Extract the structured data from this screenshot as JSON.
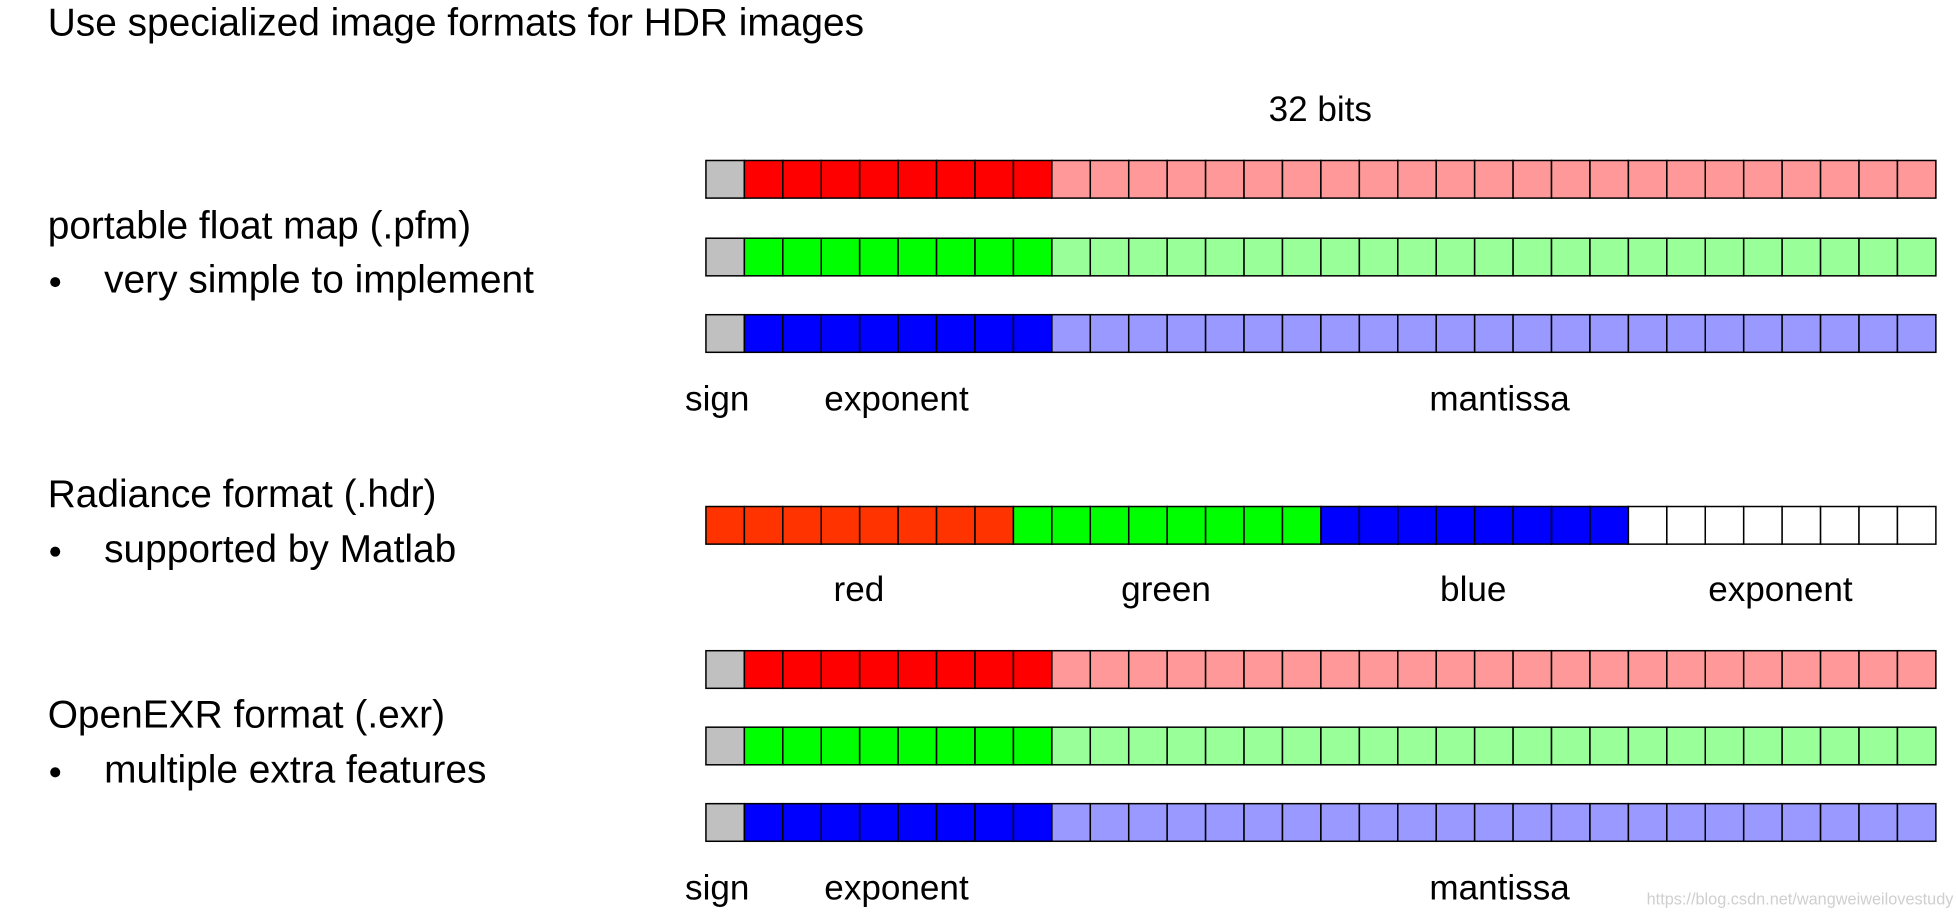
{
  "title": "Use specialized image formats for HDR images",
  "sections": [
    {
      "heading": "portable float map (.pfm)",
      "bullet": "very simple to implement"
    },
    {
      "heading": "Radiance format (.hdr)",
      "bullet": "supported by Matlab"
    },
    {
      "heading": "OpenEXR format (.exr)",
      "bullet": "multiple extra features"
    }
  ],
  "diagram": {
    "width_label": "32 bits",
    "float_labels_top": [
      "sign",
      "exponent",
      "mantissa"
    ],
    "rgbe_labels": [
      "red",
      "green",
      "blue",
      "exponent"
    ],
    "float_labels_bottom": [
      "sign",
      "exponent",
      "mantissa"
    ]
  },
  "watermark": "https://blog.csdn.net/wangweiweilovestudy"
}
